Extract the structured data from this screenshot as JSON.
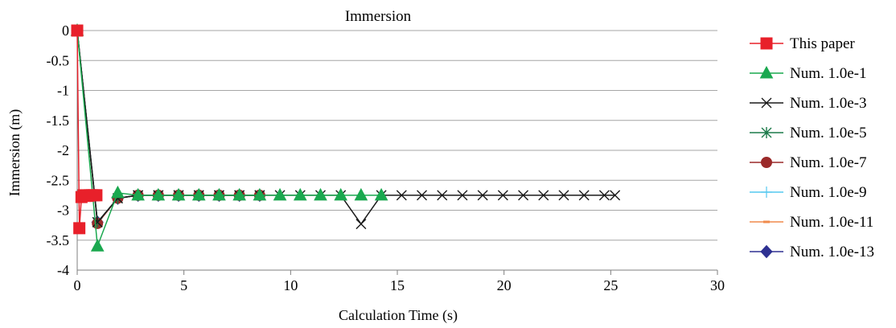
{
  "chart_data": {
    "type": "line",
    "title": "Immersion",
    "xlabel": "Calculation Time (s)",
    "ylabel": "Immersion (m)",
    "xlim": [
      0,
      30
    ],
    "ylim": [
      -4,
      0
    ],
    "xticks": [
      0,
      5,
      10,
      15,
      20,
      25,
      30
    ],
    "yticks": [
      0,
      -0.5,
      -1,
      -1.5,
      -2,
      -2.5,
      -3,
      -3.5,
      -4
    ],
    "xtick_labels": [
      "0",
      "5",
      "10",
      "15",
      "20",
      "25",
      "30"
    ],
    "ytick_labels": [
      "0",
      "-0.5",
      "-1",
      "-1.5",
      "-2",
      "-2.5",
      "-3",
      "-3.5",
      "-4"
    ],
    "grid": "horizontal",
    "legend_position": "right",
    "series": [
      {
        "name": "This paper",
        "color": "#e8202a",
        "marker": "square",
        "x": [
          0.0,
          0.1,
          0.2,
          0.3,
          0.4,
          0.5,
          0.6,
          0.7,
          0.8,
          0.9
        ],
        "y": [
          0.0,
          -3.3,
          -2.78,
          -2.75,
          -2.76,
          -2.76,
          -2.75,
          -2.75,
          -2.75,
          -2.75
        ]
      },
      {
        "name": "Num. 1.0e-1",
        "color": "#1aa84f",
        "marker": "triangle",
        "x": [
          0.0,
          0.95,
          1.9,
          2.85,
          3.8,
          4.75,
          5.7,
          6.65,
          7.6,
          8.55,
          9.5,
          10.45,
          11.4,
          12.35,
          13.3,
          14.25
        ],
        "y": [
          0.0,
          -3.6,
          -2.71,
          -2.75,
          -2.75,
          -2.75,
          -2.75,
          -2.75,
          -2.75,
          -2.75,
          -2.75,
          -2.75,
          -2.75,
          -2.75,
          -2.75,
          -2.75
        ]
      },
      {
        "name": "Num. 1.0e-3",
        "color": "#1a1a1a",
        "marker": "x",
        "x": [
          0.0,
          0.95,
          1.9,
          2.85,
          3.8,
          4.75,
          5.7,
          6.65,
          7.6,
          8.55,
          9.5,
          10.45,
          11.4,
          12.35,
          13.3,
          14.25,
          15.2,
          16.15,
          17.1,
          18.05,
          19.0,
          19.95,
          20.9,
          21.85,
          22.8,
          23.75,
          24.7,
          25.2
        ],
        "y": [
          0.0,
          -3.2,
          -2.8,
          -2.75,
          -2.75,
          -2.75,
          -2.75,
          -2.75,
          -2.75,
          -2.75,
          -2.75,
          -2.75,
          -2.75,
          -2.75,
          -3.23,
          -2.75,
          -2.75,
          -2.75,
          -2.75,
          -2.75,
          -2.75,
          -2.75,
          -2.75,
          -2.75,
          -2.75,
          -2.75,
          -2.75,
          -2.75
        ]
      },
      {
        "name": "Num. 1.0e-5",
        "color": "#1c7a4a",
        "marker": "asterisk",
        "x": [
          0.0,
          0.95,
          1.9,
          2.85,
          3.8,
          4.75,
          5.7,
          6.65,
          7.6,
          8.55
        ],
        "y": [
          0.0,
          -3.2,
          -2.8,
          -2.75,
          -2.75,
          -2.75,
          -2.75,
          -2.75,
          -2.75,
          -2.75
        ]
      },
      {
        "name": "Num. 1.0e-7",
        "color": "#9b2a2a",
        "marker": "circle",
        "x": [
          0.0,
          0.95,
          1.9,
          2.85,
          3.8,
          4.75,
          5.7,
          6.65,
          7.6,
          8.55
        ],
        "y": [
          0.0,
          -3.22,
          -2.8,
          -2.75,
          -2.75,
          -2.75,
          -2.75,
          -2.75,
          -2.75,
          -2.75
        ]
      },
      {
        "name": "Num. 1.0e-9",
        "color": "#55c8ef",
        "marker": "plus",
        "x": [
          0.0,
          0.95,
          1.9,
          2.85,
          3.8,
          4.75,
          5.7,
          6.65,
          7.6,
          8.55
        ],
        "y": [
          0.0,
          -3.2,
          -2.8,
          -2.75,
          -2.75,
          -2.75,
          -2.75,
          -2.75,
          -2.75,
          -2.75
        ]
      },
      {
        "name": "Num. 1.0e-11",
        "color": "#f08a4b",
        "marker": "dash",
        "x": [
          0.0,
          0.95,
          1.9,
          2.85,
          3.8,
          4.75,
          5.7,
          6.65,
          7.6,
          8.55
        ],
        "y": [
          0.0,
          -3.2,
          -2.8,
          -2.75,
          -2.75,
          -2.75,
          -2.75,
          -2.75,
          -2.75,
          -2.75
        ]
      },
      {
        "name": "Num. 1.0e-13",
        "color": "#2e3192",
        "marker": "diamond",
        "x": [
          0.0,
          0.95,
          1.9,
          2.85,
          3.8,
          4.75,
          5.7,
          6.65,
          7.6,
          8.55
        ],
        "y": [
          0.0,
          -3.2,
          -2.8,
          -2.75,
          -2.75,
          -2.75,
          -2.75,
          -2.75,
          -2.75,
          -2.75
        ]
      }
    ]
  }
}
